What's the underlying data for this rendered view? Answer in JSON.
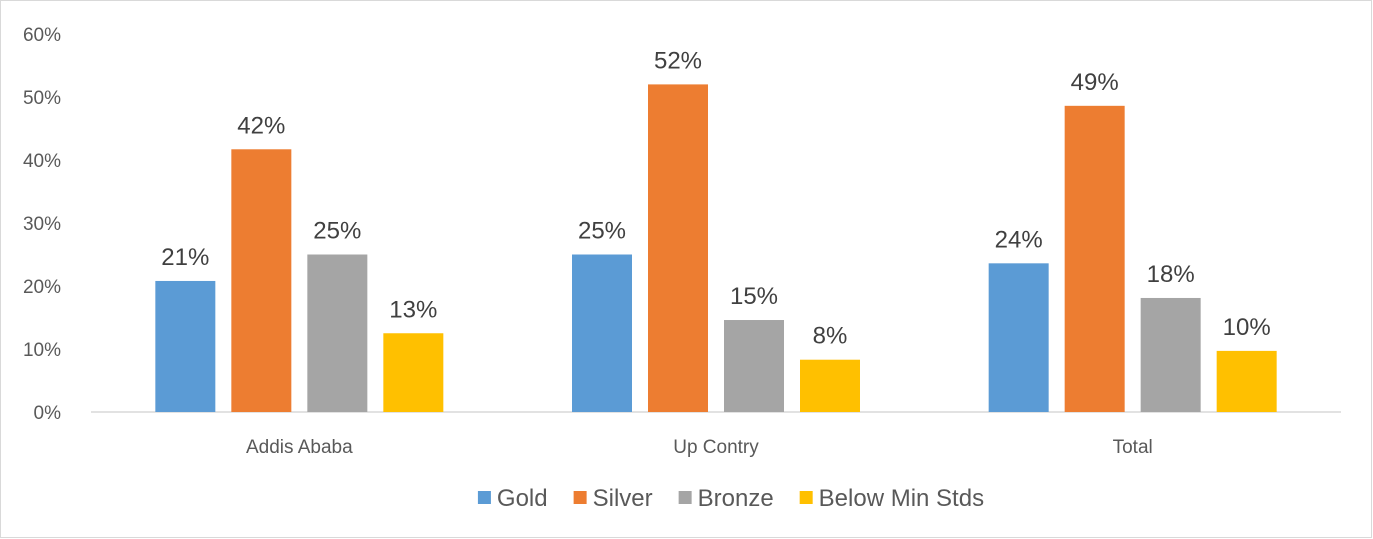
{
  "chart_data": {
    "type": "bar",
    "title": "",
    "xlabel": "",
    "ylabel": "",
    "ylim": [
      0,
      0.6
    ],
    "y_tick_step": 0.1,
    "y_tick_labels": [
      "0%",
      "10%",
      "20%",
      "30%",
      "40%",
      "50%",
      "60%"
    ],
    "grid": false,
    "legend_position": "bottom",
    "categories": [
      "Addis Ababa",
      "Up Contry",
      "Total"
    ],
    "series": [
      {
        "name": "Gold",
        "color": "#5b9bd5",
        "values": [
          0.208,
          0.25,
          0.236
        ],
        "labels": [
          "21%",
          "25%",
          "24%"
        ]
      },
      {
        "name": "Silver",
        "color": "#ed7d31",
        "values": [
          0.417,
          0.52,
          0.486
        ],
        "labels": [
          "42%",
          "52%",
          "49%"
        ]
      },
      {
        "name": "Bronze",
        "color": "#a5a5a5",
        "values": [
          0.25,
          0.146,
          0.181
        ],
        "labels": [
          "25%",
          "15%",
          "18%"
        ]
      },
      {
        "name": "Below Min Stds",
        "color": "#ffc000",
        "values": [
          0.125,
          0.083,
          0.097
        ],
        "labels": [
          "13%",
          "8%",
          "10%"
        ]
      }
    ]
  }
}
